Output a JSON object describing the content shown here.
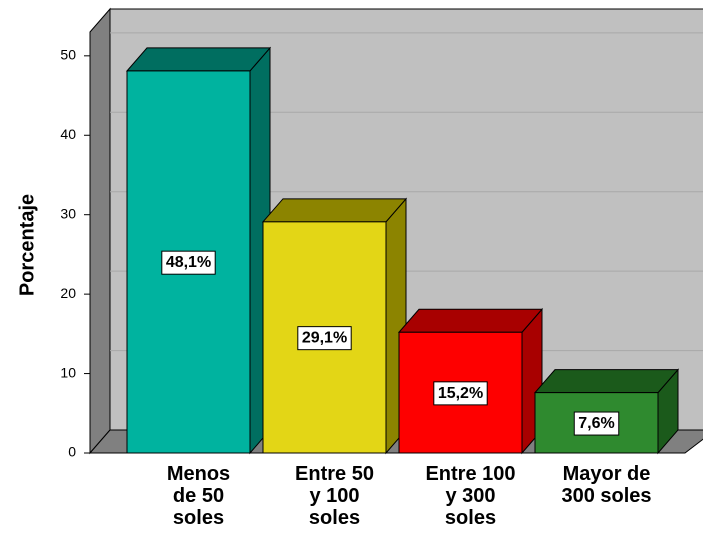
{
  "chart_data": {
    "type": "bar3d",
    "y_label": "Porcentaje",
    "categories": [
      "Menos\nde 50\nsoles",
      "Entre 50\ny 100\nsoles",
      "Entre 100\ny 300\nsoles",
      "Mayor de\n300 soles"
    ],
    "values": [
      48.1,
      29.1,
      15.2,
      7.6
    ],
    "value_labels": [
      "48,1%",
      "29,1%",
      "15,2%",
      "7,6%"
    ],
    "colors": [
      "#00b39f",
      "#e3d616",
      "#fe0000",
      "#2f8a2f"
    ],
    "side_colors": [
      "#006e60",
      "#8c8400",
      "#a80000",
      "#1b5a1b"
    ],
    "ylim": [
      0,
      53
    ],
    "yticks": [
      0,
      10,
      20,
      30,
      40,
      50
    ],
    "grid": true
  }
}
